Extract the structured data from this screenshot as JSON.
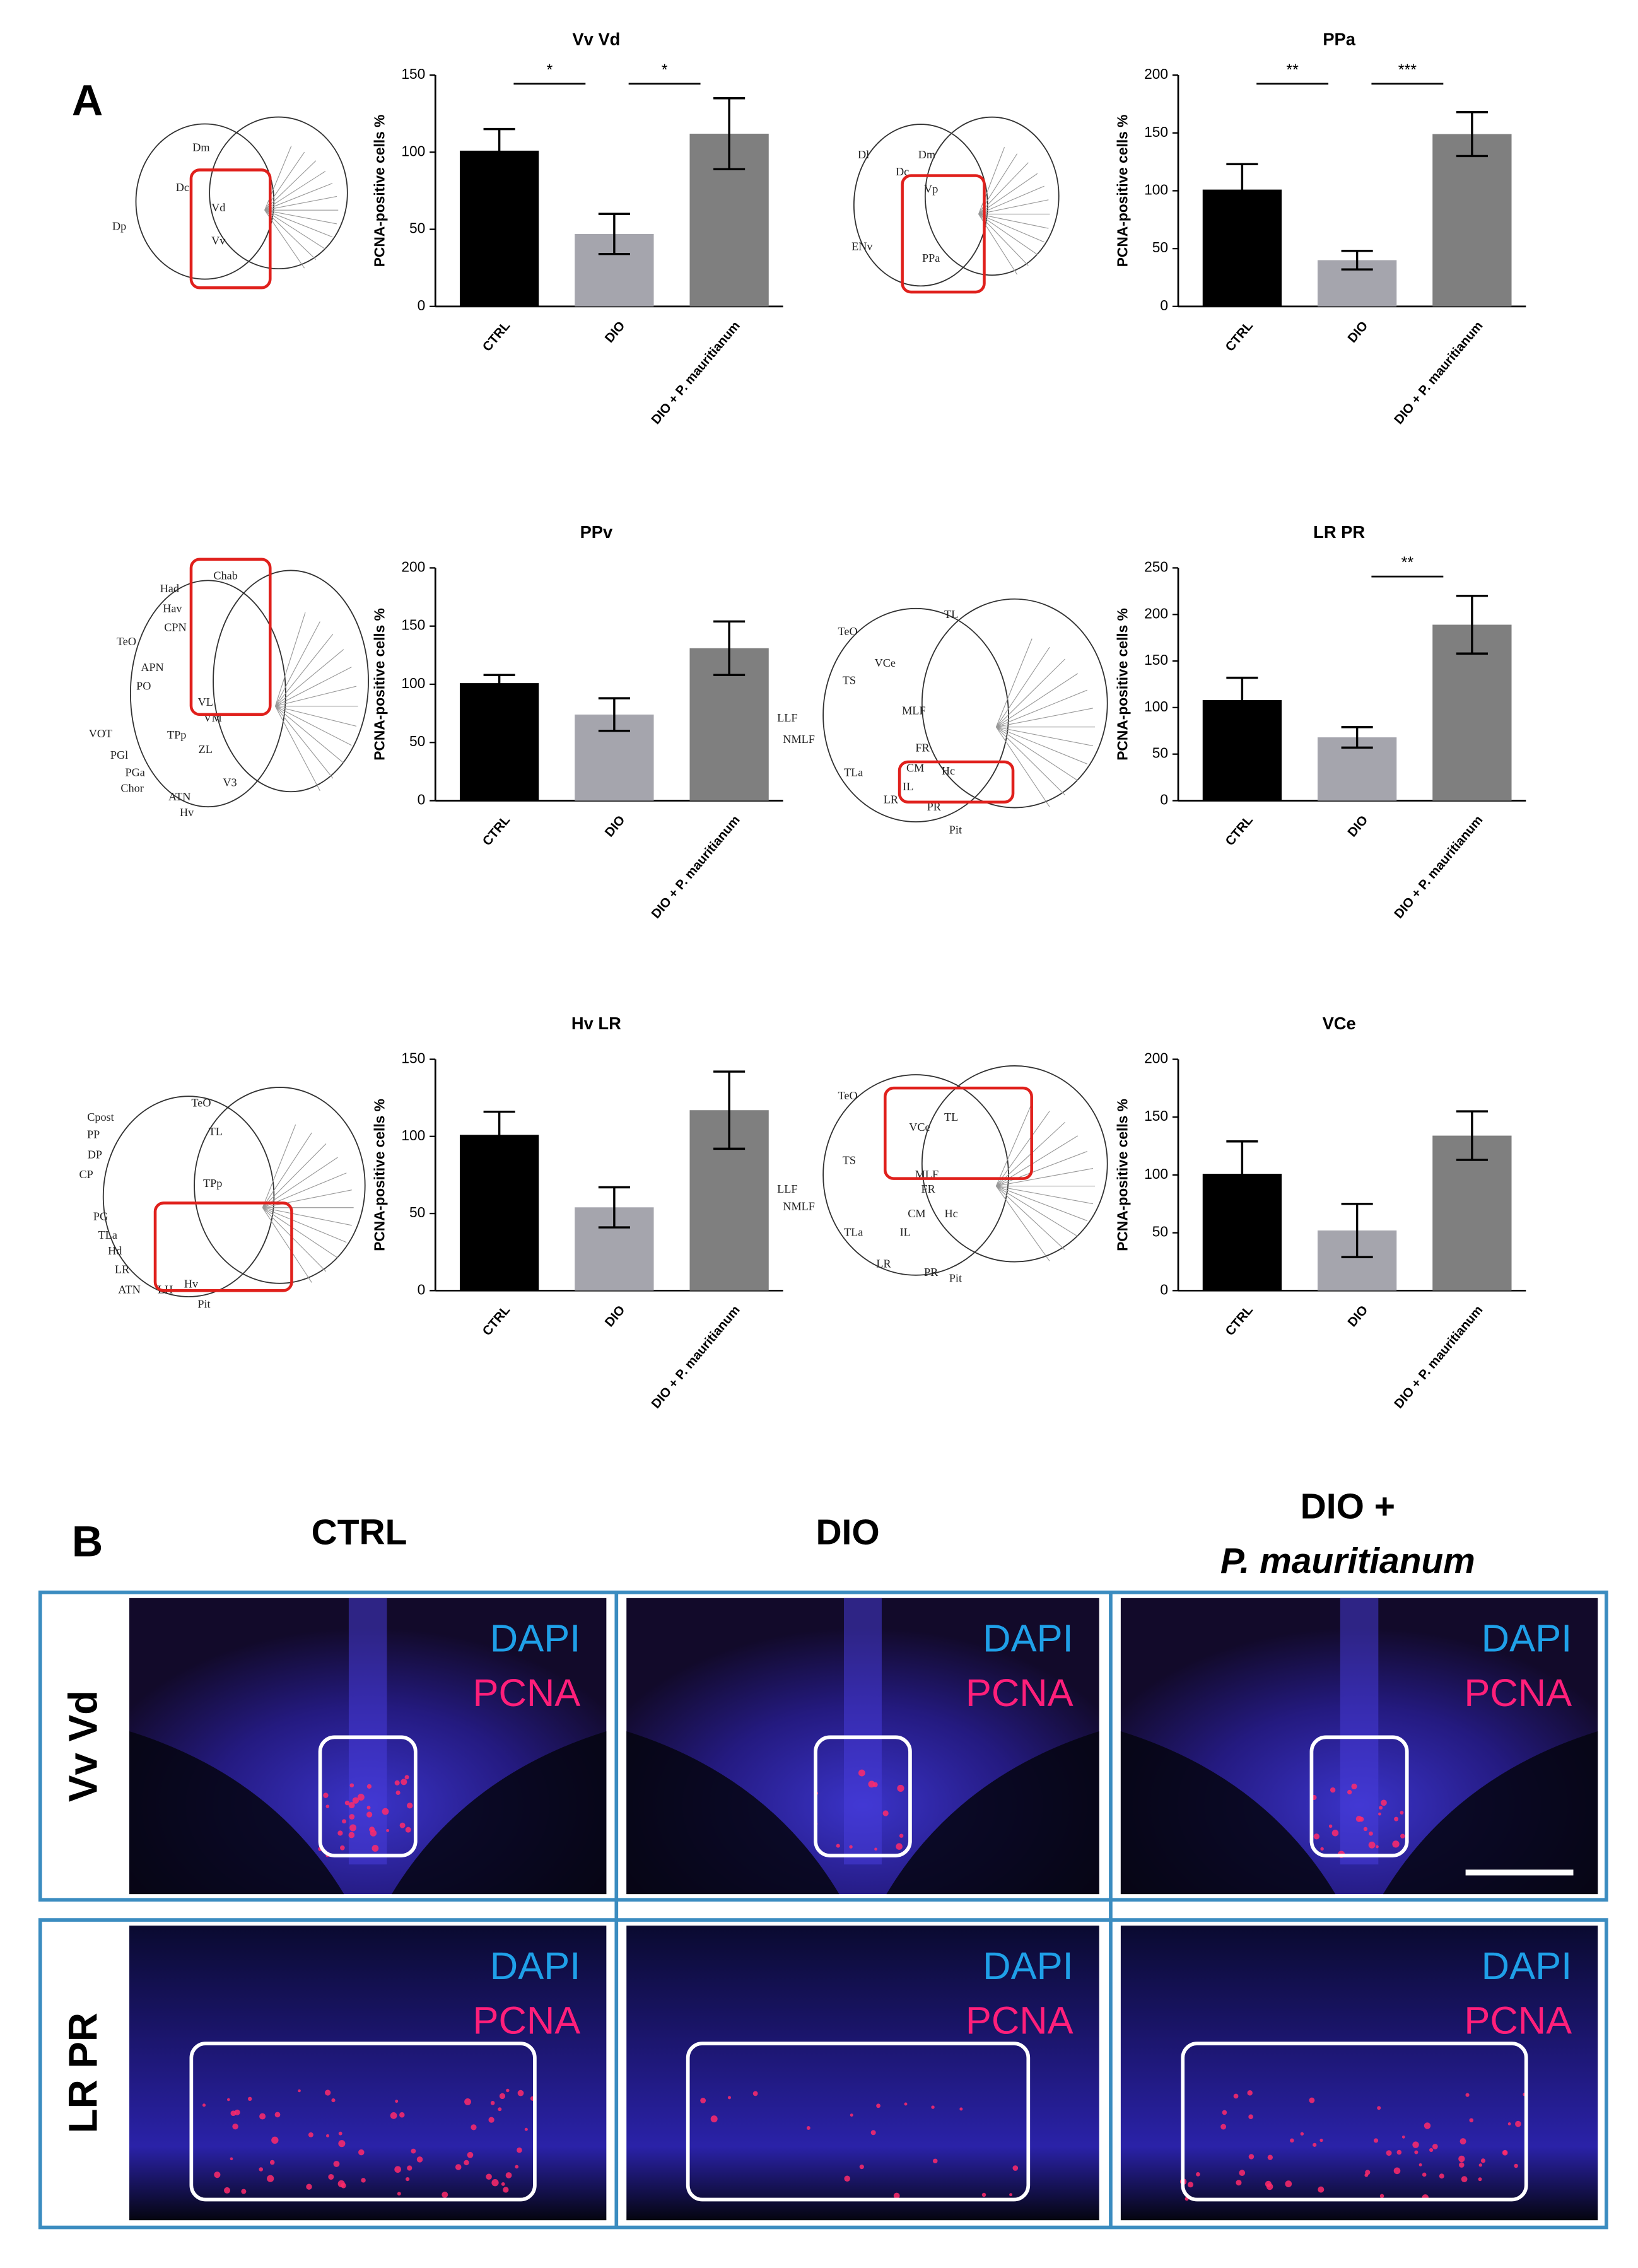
{
  "panel_labels": [
    "A",
    "B"
  ],
  "chart_data": [
    {
      "type": "bar",
      "title": "Vv Vd",
      "ylabel": "PCNA-positive cells %",
      "categories": [
        "CTRL",
        "DIO",
        "DIO + P. mauritianum"
      ],
      "values": [
        101,
        47,
        112
      ],
      "errors": [
        14,
        13,
        23
      ],
      "colors": [
        "#000000",
        "#a5a5ad",
        "#7f7f7f"
      ],
      "ylim": [
        0,
        150
      ],
      "yticks": [
        0,
        50,
        100,
        150
      ],
      "annotations": [
        {
          "text": "*",
          "from": 0,
          "to": 1
        },
        {
          "text": "*",
          "from": 1,
          "to": 2
        }
      ]
    },
    {
      "type": "bar",
      "title": "PPa",
      "ylabel": "PCNA-positive cells %",
      "categories": [
        "CTRL",
        "DIO",
        "DIO + P. mauritianum"
      ],
      "values": [
        101,
        40,
        149
      ],
      "errors": [
        22,
        8,
        19
      ],
      "colors": [
        "#000000",
        "#a5a5ad",
        "#7f7f7f"
      ],
      "ylim": [
        0,
        200
      ],
      "yticks": [
        0,
        50,
        100,
        150,
        200
      ],
      "annotations": [
        {
          "text": "**",
          "from": 0,
          "to": 1
        },
        {
          "text": "***",
          "from": 1,
          "to": 2
        }
      ]
    },
    {
      "type": "bar",
      "title": "PPv",
      "ylabel": "PCNA-positive cells %",
      "categories": [
        "CTRL",
        "DIO",
        "DIO + P. mauritianum"
      ],
      "values": [
        101,
        74,
        131
      ],
      "errors": [
        7,
        14,
        23
      ],
      "colors": [
        "#000000",
        "#a5a5ad",
        "#7f7f7f"
      ],
      "ylim": [
        0,
        200
      ],
      "yticks": [
        0,
        50,
        100,
        150,
        200
      ],
      "annotations": []
    },
    {
      "type": "bar",
      "title": "LR PR",
      "ylabel": "PCNA-positive cells %",
      "categories": [
        "CTRL",
        "DIO",
        "DIO + P. mauritianum"
      ],
      "values": [
        108,
        68,
        189
      ],
      "errors": [
        24,
        11,
        31
      ],
      "colors": [
        "#000000",
        "#a5a5ad",
        "#7f7f7f"
      ],
      "ylim": [
        0,
        250
      ],
      "yticks": [
        0,
        50,
        100,
        150,
        200,
        250
      ],
      "annotations": [
        {
          "text": "**",
          "from": 1,
          "to": 2
        }
      ]
    },
    {
      "type": "bar",
      "title": "Hv LR",
      "ylabel": "PCNA-positive cells %",
      "categories": [
        "CTRL",
        "DIO",
        "DIO + P. mauritianum"
      ],
      "values": [
        101,
        54,
        117
      ],
      "errors": [
        15,
        13,
        25
      ],
      "colors": [
        "#000000",
        "#a5a5ad",
        "#7f7f7f"
      ],
      "ylim": [
        0,
        150
      ],
      "yticks": [
        0,
        50,
        100,
        150
      ],
      "annotations": []
    },
    {
      "type": "bar",
      "title": "VCe",
      "ylabel": "PCNA-positive cells %",
      "categories": [
        "CTRL",
        "DIO",
        "DIO + P. mauritianum"
      ],
      "values": [
        101,
        52,
        134
      ],
      "errors": [
        28,
        23,
        21
      ],
      "colors": [
        "#000000",
        "#a5a5ad",
        "#7f7f7f"
      ],
      "ylim": [
        0,
        200
      ],
      "yticks": [
        0,
        50,
        100,
        150,
        200
      ],
      "annotations": []
    }
  ],
  "diagrams": [
    {
      "labels": [
        "Dm",
        "Dc",
        "Vd",
        "Vv",
        "Dp"
      ]
    },
    {
      "labels": [
        "Dl",
        "Dm",
        "Dc",
        "Vp",
        "ENv",
        "PPa"
      ]
    },
    {
      "labels": [
        "Chab",
        "Had",
        "Hav",
        "CPN",
        "TeO",
        "APN",
        "PO",
        "VL",
        "VM",
        "VOT",
        "TPp",
        "ZL",
        "PGl",
        "PGa",
        "Chor",
        "ATN",
        "V3",
        "Hv"
      ]
    },
    {
      "labels": [
        "TeO",
        "TL",
        "VCe",
        "TS",
        "MLF",
        "LLF",
        "NMLF",
        "FR",
        "CM",
        "Hc",
        "TLa",
        "IL",
        "LR",
        "PR",
        "Pit"
      ]
    },
    {
      "labels": [
        "TeO",
        "Cpost",
        "PP",
        "DP",
        "CP",
        "TL",
        "TPp",
        "PG",
        "TLa",
        "Hd",
        "LR",
        "ATN",
        "LH",
        "Hv",
        "Pit"
      ]
    },
    {
      "labels": [
        "TeO",
        "TL",
        "VCe",
        "TS",
        "MLF",
        "LLF",
        "NMLF",
        "FR",
        "CM",
        "Hc",
        "TLa",
        "IL",
        "LR",
        "PR",
        "Pit"
      ]
    }
  ],
  "panel_b": {
    "columns": [
      [
        "CTRL"
      ],
      [
        "DIO"
      ],
      [
        "DIO +",
        "P. mauritianum"
      ]
    ],
    "rows": [
      "Vv Vd",
      "LR PR"
    ],
    "stains": [
      "DAPI",
      "PCNA"
    ]
  }
}
